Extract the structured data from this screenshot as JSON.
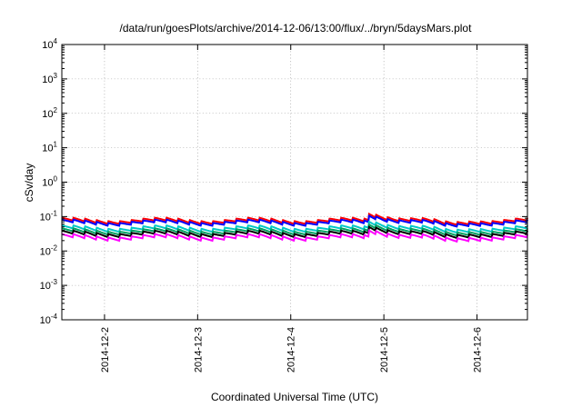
{
  "chart_data": {
    "type": "line",
    "title": "/data/run/goesPlots/archive/2014-12-06/13:00/flux/../bryn/5daysMars.plot",
    "xlabel": "Coordinated Universal Time (UTC)",
    "ylabel": "cSv/day",
    "yscale": "log",
    "ylim": [
      0.0001,
      10000
    ],
    "y_ticks": [
      {
        "base": "10",
        "exp": "-4"
      },
      {
        "base": "10",
        "exp": "-3"
      },
      {
        "base": "10",
        "exp": "-2"
      },
      {
        "base": "10",
        "exp": "-1"
      },
      {
        "base": "10",
        "exp": "0"
      },
      {
        "base": "10",
        "exp": "1"
      },
      {
        "base": "10",
        "exp": "2"
      },
      {
        "base": "10",
        "exp": "3"
      },
      {
        "base": "10",
        "exp": "4"
      }
    ],
    "xlim": [
      "2014-12-01T13:00",
      "2014-12-06T13:00"
    ],
    "x_ticks": [
      "2014-12-2",
      "2014-12-3",
      "2014-12-4",
      "2014-12-5",
      "2014-12-6"
    ],
    "grid": true,
    "series": [
      {
        "color": "#ff0000",
        "base": 0.068,
        "amp": 0.22
      },
      {
        "color": "#0000ff",
        "base": 0.06,
        "amp": 0.22
      },
      {
        "color": "#00c8c8",
        "base": 0.04,
        "amp": 0.24
      },
      {
        "color": "#00a060",
        "base": 0.033,
        "amp": 0.24
      },
      {
        "color": "#000000",
        "base": 0.028,
        "amp": 0.25
      },
      {
        "color": "#ff00ff",
        "base": 0.022,
        "amp": 0.26
      }
    ]
  }
}
